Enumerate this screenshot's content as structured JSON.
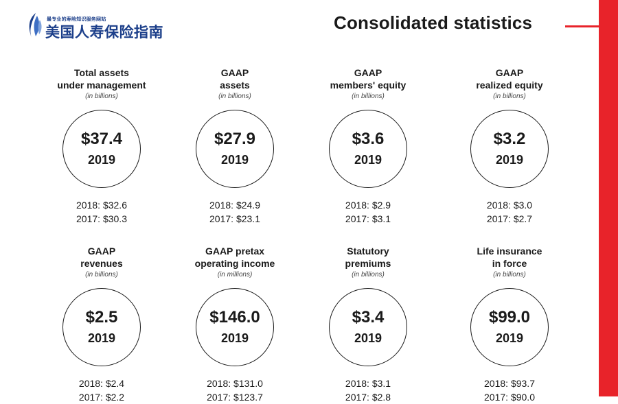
{
  "brand": {
    "tagline": "最专业的寿险知识服务网站",
    "name": "美国人寿保险指南"
  },
  "header": {
    "title": "Consolidated statistics"
  },
  "stats": [
    {
      "label_lines": [
        "Total assets",
        "under management"
      ],
      "unit": "(in billions)",
      "value": "$37.4",
      "year": "2019",
      "history": [
        "2018: $32.6",
        "2017: $30.3"
      ]
    },
    {
      "label_lines": [
        "GAAP",
        "assets"
      ],
      "unit": "(in billions)",
      "value": "$27.9",
      "year": "2019",
      "history": [
        "2018: $24.9",
        "2017: $23.1"
      ]
    },
    {
      "label_lines": [
        "GAAP",
        "members' equity"
      ],
      "unit": "(in billions)",
      "value": "$3.6",
      "year": "2019",
      "history": [
        "2018: $2.9",
        "2017: $3.1"
      ]
    },
    {
      "label_lines": [
        "GAAP",
        "realized equity"
      ],
      "unit": "(in billions)",
      "value": "$3.2",
      "year": "2019",
      "history": [
        "2018: $3.0",
        "2017: $2.7"
      ]
    },
    {
      "label_lines": [
        "GAAP",
        "revenues"
      ],
      "unit": "(in billions)",
      "value": "$2.5",
      "year": "2019",
      "history": [
        "2018: $2.4",
        "2017: $2.2"
      ]
    },
    {
      "label_lines": [
        "GAAP pretax",
        "operating income"
      ],
      "unit": "(in millions)",
      "value": "$146.0",
      "year": "2019",
      "history": [
        "2018: $131.0",
        "2017: $123.7"
      ]
    },
    {
      "label_lines": [
        "Statutory",
        "premiums"
      ],
      "unit": "(in billions)",
      "value": "$3.4",
      "year": "2019",
      "history": [
        "2018: $3.1",
        "2017: $2.8"
      ]
    },
    {
      "label_lines": [
        "Life insurance",
        "in force"
      ],
      "unit": "(in billions)",
      "value": "$99.0",
      "year": "2019",
      "history": [
        "2018: $93.7",
        "2017: $90.0"
      ]
    }
  ],
  "colors": {
    "accent": "#e8232a",
    "brand": "#1c3f8a",
    "text": "#1a1a1a"
  }
}
